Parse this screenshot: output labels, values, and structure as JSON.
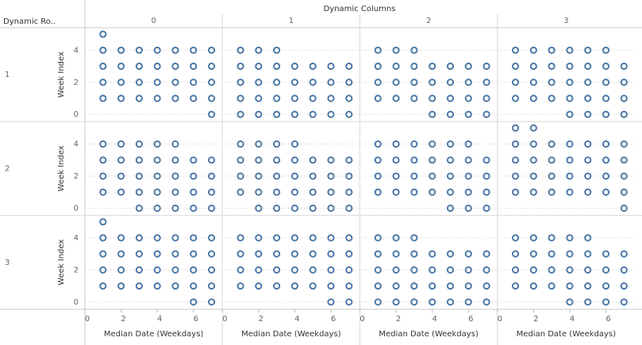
{
  "chart_data": {
    "type": "scatter",
    "column_header": "Dynamic Columns",
    "row_header": "Dynamic Ro..",
    "columns": [
      "0",
      "1",
      "2",
      "3"
    ],
    "rows": [
      "1",
      "2",
      "3"
    ],
    "x_label": "Median Date (Weekdays)",
    "y_label": "Week Index",
    "xlim": [
      0,
      7.6
    ],
    "ylim": [
      -0.45,
      5.4
    ],
    "xticks": [
      0,
      2,
      4,
      6
    ],
    "yticks": [
      0,
      2,
      4
    ],
    "grid": true,
    "color": "#4e79a7",
    "panels": [
      {
        "x": [
          1,
          1,
          2,
          3,
          4,
          5,
          6,
          7,
          1,
          2,
          3,
          4,
          5,
          6,
          7,
          1,
          2,
          3,
          4,
          5,
          6,
          7,
          1,
          2,
          3,
          4,
          5,
          6,
          7,
          7
        ],
        "y": [
          5,
          4,
          4,
          4,
          4,
          4,
          4,
          4,
          3,
          3,
          3,
          3,
          3,
          3,
          3,
          2,
          2,
          2,
          2,
          2,
          2,
          2,
          1,
          1,
          1,
          1,
          1,
          1,
          1,
          0
        ]
      },
      {
        "x": [
          1,
          2,
          3,
          1,
          2,
          3,
          4,
          5,
          6,
          7,
          1,
          2,
          3,
          4,
          5,
          6,
          7,
          1,
          2,
          3,
          4,
          5,
          6,
          7,
          1,
          2,
          3,
          4,
          5,
          6,
          7
        ],
        "y": [
          4,
          4,
          4,
          3,
          3,
          3,
          3,
          3,
          3,
          3,
          2,
          2,
          2,
          2,
          2,
          2,
          2,
          1,
          1,
          1,
          1,
          1,
          1,
          1,
          0,
          0,
          0,
          0,
          0,
          0,
          0
        ]
      },
      {
        "x": [
          1,
          2,
          3,
          1,
          2,
          3,
          4,
          5,
          6,
          7,
          1,
          2,
          3,
          4,
          5,
          6,
          7,
          1,
          2,
          3,
          4,
          5,
          6,
          7,
          4,
          5,
          6,
          7
        ],
        "y": [
          4,
          4,
          4,
          3,
          3,
          3,
          3,
          3,
          3,
          3,
          2,
          2,
          2,
          2,
          2,
          2,
          2,
          1,
          1,
          1,
          1,
          1,
          1,
          1,
          0,
          0,
          0,
          0
        ]
      },
      {
        "x": [
          1,
          2,
          3,
          4,
          5,
          6,
          1,
          2,
          3,
          4,
          5,
          6,
          7,
          1,
          2,
          3,
          4,
          5,
          6,
          7,
          1,
          2,
          3,
          4,
          5,
          6,
          7,
          4,
          5,
          6,
          7
        ],
        "y": [
          4,
          4,
          4,
          4,
          4,
          4,
          3,
          3,
          3,
          3,
          3,
          3,
          3,
          2,
          2,
          2,
          2,
          2,
          2,
          2,
          1,
          1,
          1,
          1,
          1,
          1,
          1,
          0,
          0,
          0,
          0
        ]
      },
      {
        "x": [
          1,
          2,
          3,
          4,
          5,
          1,
          2,
          3,
          4,
          5,
          6,
          7,
          1,
          2,
          3,
          4,
          5,
          6,
          7,
          1,
          2,
          3,
          4,
          5,
          6,
          7,
          3,
          4,
          5,
          6,
          7
        ],
        "y": [
          4,
          4,
          4,
          4,
          4,
          3,
          3,
          3,
          3,
          3,
          3,
          3,
          2,
          2,
          2,
          2,
          2,
          2,
          2,
          1,
          1,
          1,
          1,
          1,
          1,
          1,
          0,
          0,
          0,
          0,
          0
        ]
      },
      {
        "x": [
          1,
          2,
          3,
          4,
          1,
          2,
          3,
          4,
          5,
          6,
          7,
          1,
          2,
          3,
          4,
          5,
          6,
          7,
          1,
          2,
          3,
          4,
          5,
          6,
          7,
          2,
          3,
          4,
          5,
          6,
          7
        ],
        "y": [
          4,
          4,
          4,
          4,
          3,
          3,
          3,
          3,
          3,
          3,
          3,
          2,
          2,
          2,
          2,
          2,
          2,
          2,
          1,
          1,
          1,
          1,
          1,
          1,
          1,
          0,
          0,
          0,
          0,
          0,
          0
        ]
      },
      {
        "x": [
          1,
          2,
          3,
          4,
          5,
          6,
          1,
          2,
          3,
          4,
          5,
          6,
          7,
          1,
          2,
          3,
          4,
          5,
          6,
          7,
          1,
          2,
          3,
          4,
          5,
          6,
          7,
          5,
          6,
          7
        ],
        "y": [
          4,
          4,
          4,
          4,
          4,
          4,
          3,
          3,
          3,
          3,
          3,
          3,
          3,
          2,
          2,
          2,
          2,
          2,
          2,
          2,
          1,
          1,
          1,
          1,
          1,
          1,
          1,
          0,
          0,
          0
        ]
      },
      {
        "x": [
          1,
          2,
          1,
          2,
          3,
          4,
          5,
          6,
          7,
          1,
          2,
          3,
          4,
          5,
          6,
          7,
          1,
          2,
          3,
          4,
          5,
          6,
          7,
          1,
          2,
          3,
          4,
          5,
          6,
          7,
          7
        ],
        "y": [
          5,
          5,
          4,
          4,
          4,
          4,
          4,
          4,
          4,
          3,
          3,
          3,
          3,
          3,
          3,
          3,
          2,
          2,
          2,
          2,
          2,
          2,
          2,
          1,
          1,
          1,
          1,
          1,
          1,
          1,
          0
        ]
      },
      {
        "x": [
          1,
          1,
          2,
          3,
          4,
          5,
          6,
          7,
          1,
          2,
          3,
          4,
          5,
          6,
          7,
          1,
          2,
          3,
          4,
          5,
          6,
          7,
          1,
          2,
          3,
          4,
          5,
          6,
          7,
          6,
          7
        ],
        "y": [
          5,
          4,
          4,
          4,
          4,
          4,
          4,
          4,
          3,
          3,
          3,
          3,
          3,
          3,
          3,
          2,
          2,
          2,
          2,
          2,
          2,
          2,
          1,
          1,
          1,
          1,
          1,
          1,
          1,
          0,
          0
        ]
      },
      {
        "x": [
          1,
          2,
          3,
          4,
          5,
          6,
          7,
          1,
          2,
          3,
          4,
          5,
          6,
          7,
          1,
          2,
          3,
          4,
          5,
          6,
          7,
          1,
          2,
          3,
          4,
          5,
          6,
          7,
          6,
          7
        ],
        "y": [
          4,
          4,
          4,
          4,
          4,
          4,
          4,
          3,
          3,
          3,
          3,
          3,
          3,
          3,
          2,
          2,
          2,
          2,
          2,
          2,
          2,
          1,
          1,
          1,
          1,
          1,
          1,
          1,
          0,
          0
        ]
      },
      {
        "x": [
          1,
          2,
          3,
          1,
          2,
          3,
          4,
          5,
          6,
          7,
          1,
          2,
          3,
          4,
          5,
          6,
          7,
          1,
          2,
          3,
          4,
          5,
          6,
          7,
          1,
          2,
          3,
          4,
          5,
          6,
          7
        ],
        "y": [
          4,
          4,
          4,
          3,
          3,
          3,
          3,
          3,
          3,
          3,
          2,
          2,
          2,
          2,
          2,
          2,
          2,
          1,
          1,
          1,
          1,
          1,
          1,
          1,
          0,
          0,
          0,
          0,
          0,
          0,
          0
        ]
      },
      {
        "x": [
          1,
          2,
          3,
          4,
          5,
          1,
          2,
          3,
          4,
          5,
          6,
          7,
          1,
          2,
          3,
          4,
          5,
          6,
          7,
          1,
          2,
          3,
          4,
          5,
          6,
          7,
          4,
          5,
          6,
          7
        ],
        "y": [
          4,
          4,
          4,
          4,
          4,
          3,
          3,
          3,
          3,
          3,
          3,
          3,
          2,
          2,
          2,
          2,
          2,
          2,
          2,
          1,
          1,
          1,
          1,
          1,
          1,
          1,
          0,
          0,
          0,
          0
        ]
      }
    ]
  }
}
